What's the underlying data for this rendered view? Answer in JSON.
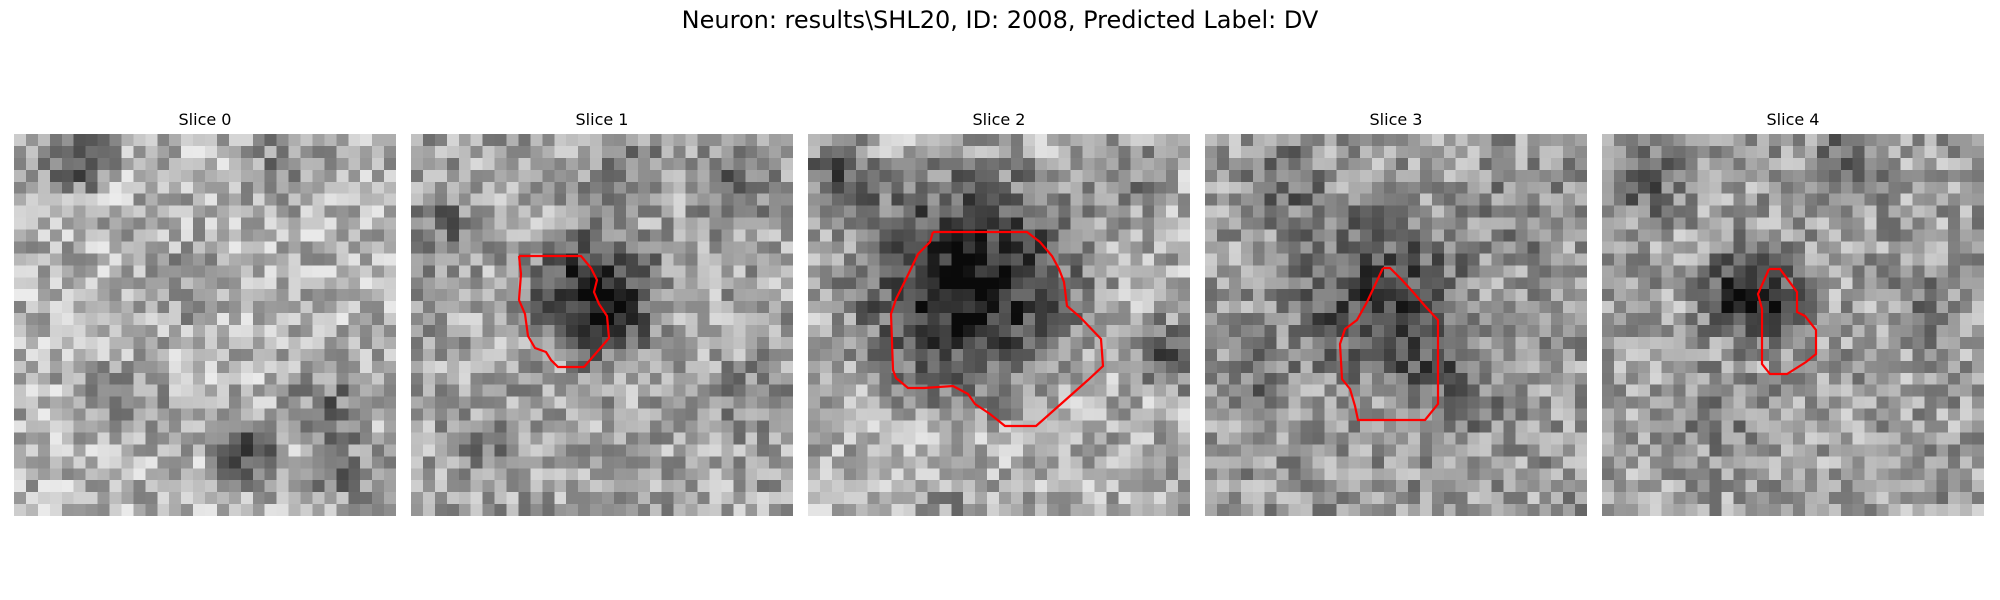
{
  "figure": {
    "title": "Neuron: results\\SHL20, ID: 2008, Predicted Label: DV"
  },
  "panels": [
    {
      "title": "Slice 0",
      "has_contour": false
    },
    {
      "title": "Slice 1",
      "has_contour": true
    },
    {
      "title": "Slice 2",
      "has_contour": true
    },
    {
      "title": "Slice 3",
      "has_contour": true
    },
    {
      "title": "Slice 4",
      "has_contour": true
    }
  ],
  "colors": {
    "contour": "#ff0000",
    "background": "#ffffff"
  }
}
